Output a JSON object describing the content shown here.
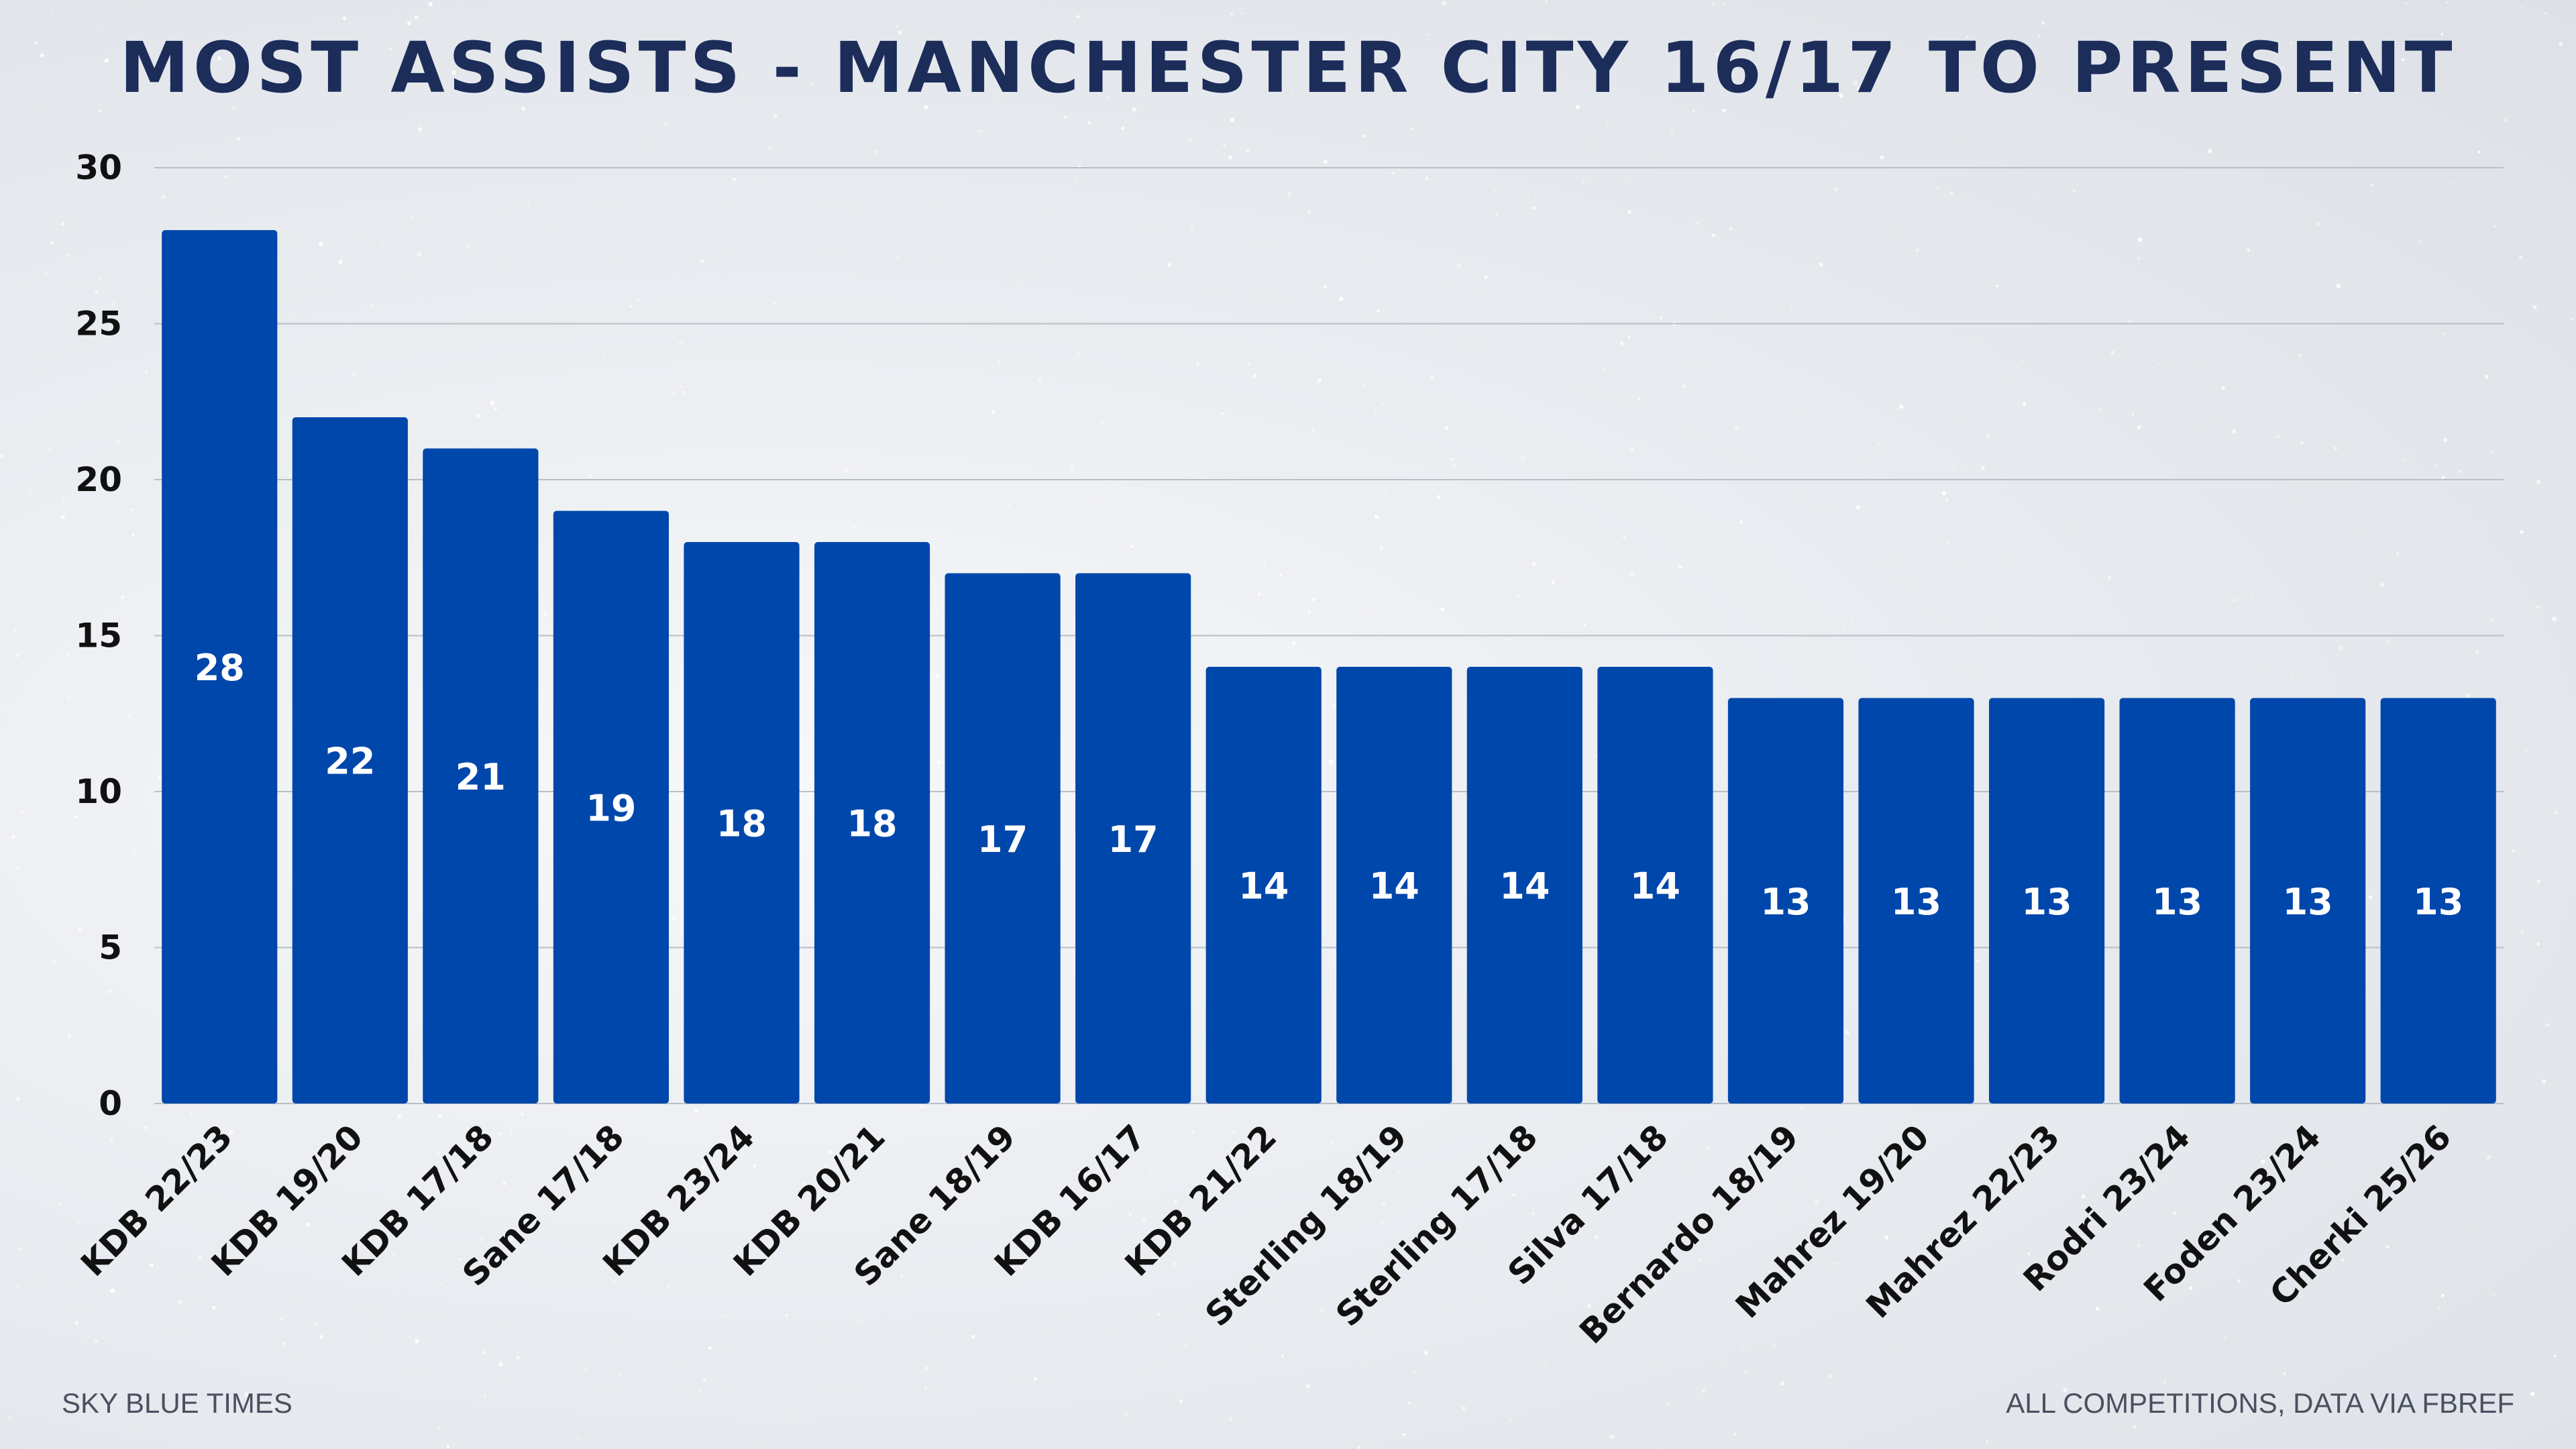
{
  "chart_data": {
    "type": "bar",
    "title": "MOST ASSISTS - MANCHESTER CITY 16/17 TO PRESENT",
    "categories": [
      "KDB 22/23",
      "KDB 19/20",
      "KDB 17/18",
      "Sane 17/18",
      "KDB 23/24",
      "KDB 20/21",
      "Sane 18/19",
      "KDB 16/17",
      "KDB 21/22",
      "Sterling 18/19",
      "Sterling 17/18",
      "Silva 17/18",
      "Bernardo 18/19",
      "Mahrez 19/20",
      "Mahrez 22/23",
      "Rodri 23/24",
      "Foden 23/24",
      "Cherki 25/26"
    ],
    "values": [
      28,
      22,
      21,
      19,
      18,
      18,
      17,
      17,
      14,
      14,
      14,
      14,
      13,
      13,
      13,
      13,
      13,
      13
    ],
    "xlabel": "",
    "ylabel": "",
    "ylim": [
      0,
      30
    ],
    "yticks": [
      0,
      5,
      10,
      15,
      20,
      25,
      30
    ],
    "grid": true,
    "data_labels": true,
    "bar_color": "#0047ab"
  },
  "footer": {
    "left": "SKY BLUE TIMES",
    "right": "ALL COMPETITIONS, DATA VIA FBREF"
  }
}
